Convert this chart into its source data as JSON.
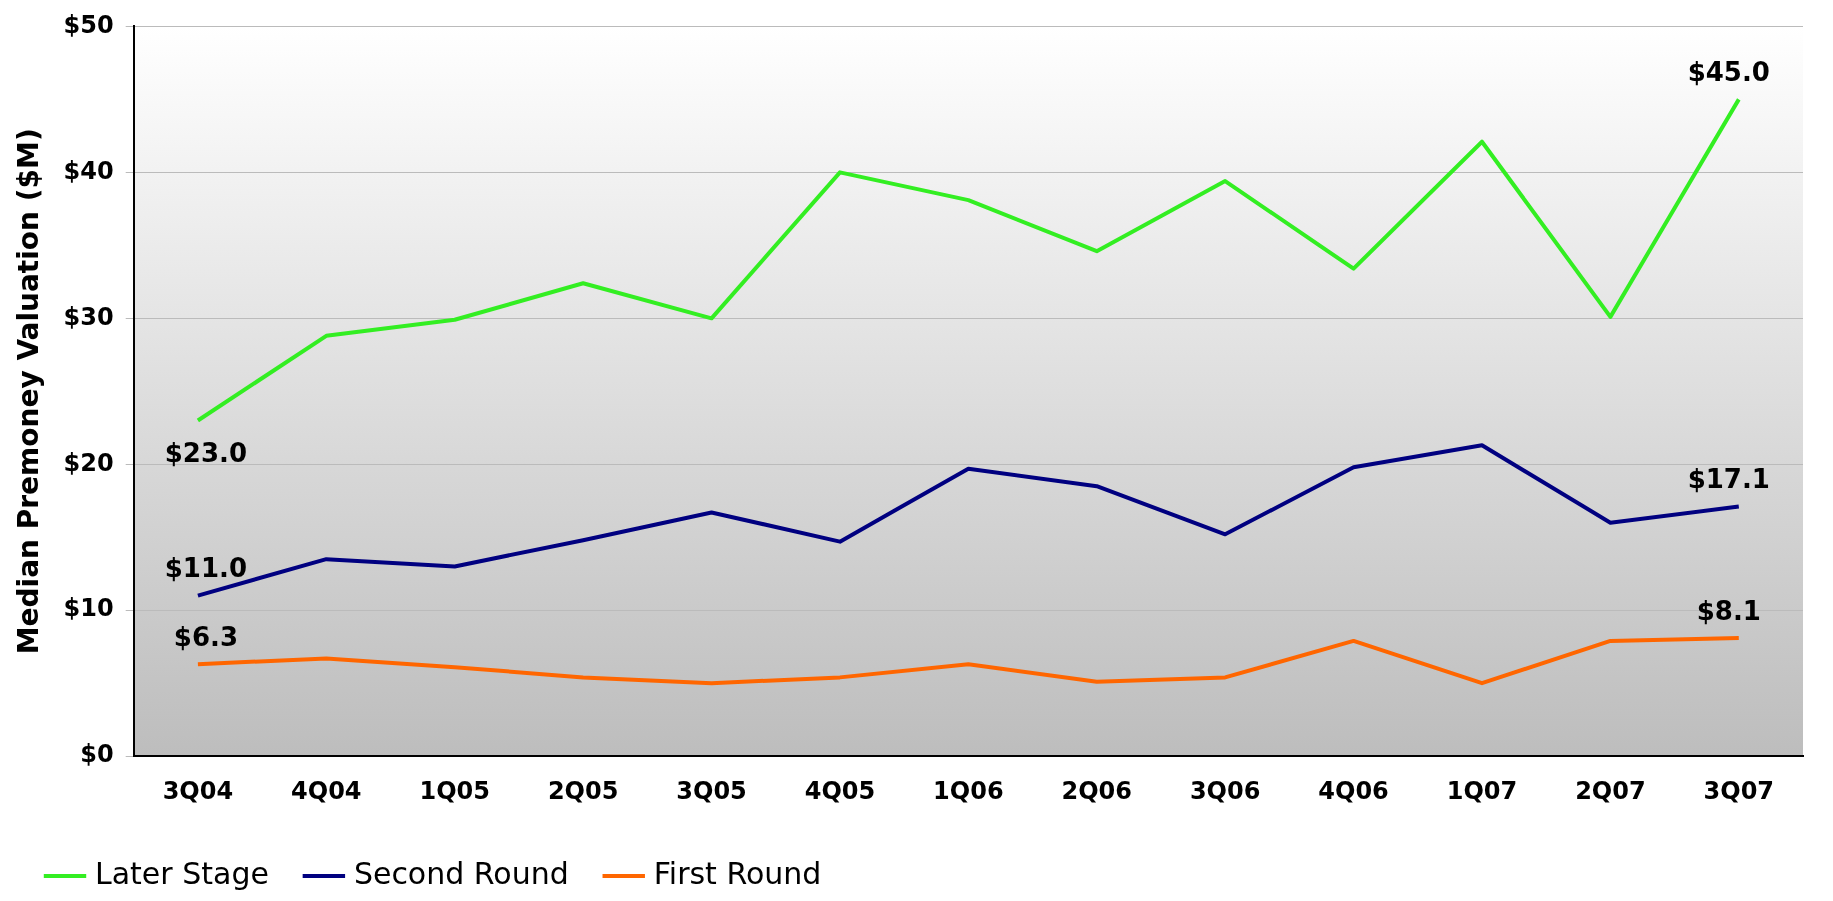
{
  "chart_data": {
    "type": "line",
    "ylabel": "Median Premoney Valuation ($M)",
    "categories": [
      "3Q04",
      "4Q04",
      "1Q05",
      "2Q05",
      "3Q05",
      "4Q05",
      "1Q06",
      "2Q06",
      "3Q06",
      "4Q06",
      "1Q07",
      "2Q07",
      "3Q07"
    ],
    "series": [
      {
        "name": "Later Stage",
        "color": "#33ee22",
        "values": [
          23.0,
          28.8,
          29.9,
          32.4,
          30.0,
          40.0,
          38.1,
          34.6,
          39.4,
          33.4,
          42.1,
          30.1,
          45.0
        ],
        "value_labels": [
          "$23.0",
          null,
          null,
          null,
          null,
          null,
          null,
          null,
          null,
          null,
          null,
          null,
          "$45.0"
        ]
      },
      {
        "name": "Second Round",
        "color": "#000080",
        "values": [
          11.0,
          13.5,
          13.0,
          14.8,
          16.7,
          14.7,
          19.7,
          18.5,
          15.2,
          19.8,
          21.3,
          16.0,
          17.1
        ],
        "value_labels": [
          "$11.0",
          null,
          null,
          null,
          null,
          null,
          null,
          null,
          null,
          null,
          null,
          null,
          "$17.1"
        ]
      },
      {
        "name": "First Round",
        "color": "#ff6600",
        "values": [
          6.3,
          6.7,
          6.1,
          5.4,
          5.0,
          5.4,
          6.3,
          5.1,
          5.4,
          7.9,
          5.0,
          7.9,
          8.1
        ],
        "value_labels": [
          "$6.3",
          null,
          null,
          null,
          null,
          null,
          null,
          null,
          null,
          null,
          null,
          null,
          "$8.1"
        ]
      }
    ],
    "ylim": [
      0,
      50
    ],
    "yticks": [
      {
        "value": 0,
        "label": "$0"
      },
      {
        "value": 10,
        "label": "$10"
      },
      {
        "value": 20,
        "label": "$20"
      },
      {
        "value": 30,
        "label": "$30"
      },
      {
        "value": 40,
        "label": "$40"
      },
      {
        "value": 50,
        "label": "$50"
      }
    ],
    "grid": "y",
    "legend": "bottom",
    "marker": "none",
    "line_style": "solid"
  }
}
